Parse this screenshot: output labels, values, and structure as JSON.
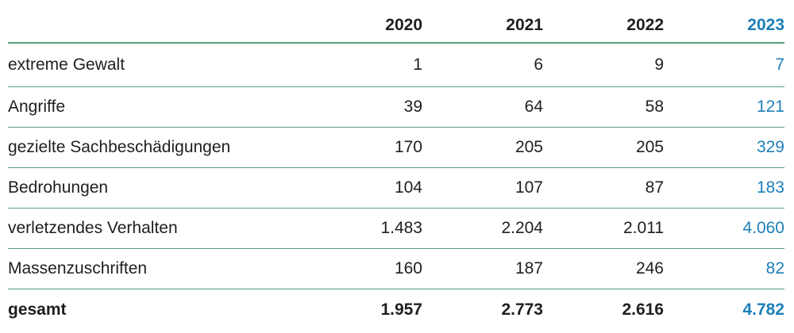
{
  "table": {
    "columns": [
      "",
      "2020",
      "2021",
      "2022",
      "2023"
    ],
    "rows": [
      {
        "label": "extreme Gewalt",
        "values": [
          "1",
          "6",
          "9",
          "7"
        ]
      },
      {
        "label": "Angriffe",
        "values": [
          "39",
          "64",
          "58",
          "121"
        ]
      },
      {
        "label": "gezielte Sachbeschädigungen",
        "values": [
          "170",
          "205",
          "205",
          "329"
        ]
      },
      {
        "label": "Bedrohungen",
        "values": [
          "104",
          "107",
          "87",
          "183"
        ]
      },
      {
        "label": "verletzendes Verhalten",
        "values": [
          "1.483",
          "2.204",
          "2.011",
          "4.060"
        ]
      },
      {
        "label": "Massenzuschriften",
        "values": [
          "160",
          "187",
          "246",
          "82"
        ]
      }
    ],
    "total": {
      "label": "gesamt",
      "values": [
        "1.957",
        "2.773",
        "2.616",
        "4.782"
      ]
    }
  },
  "colors": {
    "accent": "#1d7fb8",
    "rule": "#5a9e79",
    "text": "#1f1f1f"
  }
}
